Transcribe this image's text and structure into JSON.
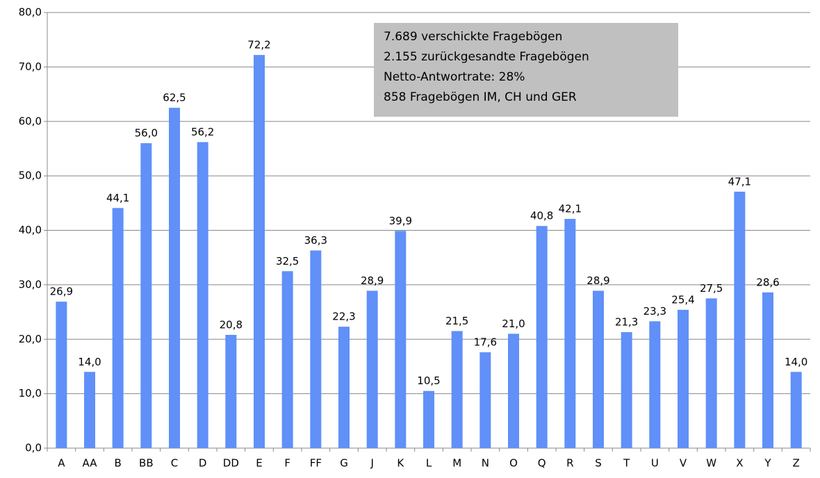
{
  "chart_data": {
    "type": "bar",
    "categories": [
      "A",
      "AA",
      "B",
      "BB",
      "C",
      "D",
      "DD",
      "E",
      "F",
      "FF",
      "G",
      "J",
      "K",
      "L",
      "M",
      "N",
      "O",
      "Q",
      "R",
      "S",
      "T",
      "U",
      "V",
      "W",
      "X",
      "Y",
      "Z"
    ],
    "values": [
      26.9,
      14.0,
      44.1,
      56.0,
      62.5,
      56.2,
      20.8,
      72.2,
      32.5,
      36.3,
      22.3,
      28.9,
      39.9,
      10.5,
      21.5,
      17.6,
      21.0,
      40.8,
      42.1,
      28.9,
      21.3,
      23.3,
      25.4,
      27.5,
      47.1,
      28.6,
      14.0
    ],
    "value_labels": [
      "26,9",
      "14,0",
      "44,1",
      "56,0",
      "62,5",
      "56,2",
      "20,8",
      "72,2",
      "32,5",
      "36,3",
      "22,3",
      "28,9",
      "39,9",
      "10,5",
      "21,5",
      "17,6",
      "21,0",
      "40,8",
      "42,1",
      "28,9",
      "21,3",
      "23,3",
      "25,4",
      "27,5",
      "47,1",
      "28,6",
      "14,0"
    ],
    "color": "#6090f8",
    "ylim": [
      0,
      80
    ],
    "yticks": [
      {
        "value": 0,
        "label": "0,0"
      },
      {
        "value": 10,
        "label": "10,0"
      },
      {
        "value": 20,
        "label": "20,0"
      },
      {
        "value": 30,
        "label": "30,0"
      },
      {
        "value": 40,
        "label": "40,0"
      },
      {
        "value": 50,
        "label": "50,0"
      },
      {
        "value": 60,
        "label": "60,0"
      },
      {
        "value": 70,
        "label": "70,0"
      },
      {
        "value": 80,
        "label": "80,0"
      }
    ],
    "grid": true,
    "annotation": [
      "7.689 verschickte Fragebögen",
      "2.155 zurückgesandte Fragebögen",
      "Netto-Antwortrate: 28%",
      "858 Fragebögen IM, CH und GER"
    ]
  }
}
